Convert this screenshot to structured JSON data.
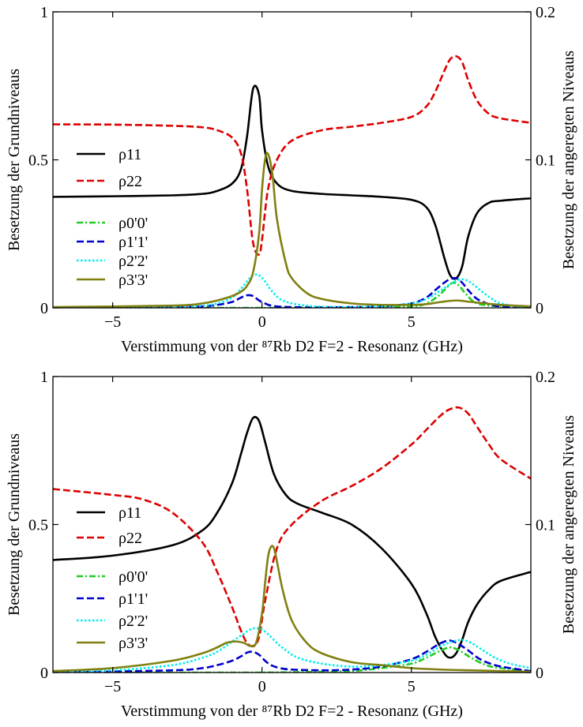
{
  "chart_data": [
    {
      "type": "line",
      "xlabel": "Verstimmung von der ⁸⁷Rb D2 F=2 - Resonanz (GHz)",
      "ylabel_left": "Besetzung der Grundniveaus",
      "ylabel_right": "Besetzung der angeregten Niveaus",
      "xlim": [
        -7,
        9
      ],
      "ylim_left": [
        0,
        1
      ],
      "ylim_right": [
        0,
        0.2
      ],
      "x_ticks": [
        -5,
        0,
        5
      ],
      "x_tick_labels": [
        "−5",
        "0",
        "5"
      ],
      "y_left_ticks": [
        0,
        0.5,
        1
      ],
      "y_left_tick_labels": [
        "0",
        "0.5",
        "1"
      ],
      "y_right_ticks": [
        0,
        0.1,
        0.2
      ],
      "y_right_tick_labels": [
        "0",
        "0.1",
        "0.2"
      ],
      "grid": false,
      "legend_placement": "left",
      "series": [
        {
          "name": "ρ11",
          "axis": "left",
          "color": "#000000",
          "style": "solid",
          "x": [
            -7,
            -5,
            -3,
            -2,
            -1.5,
            -1,
            -0.7,
            -0.5,
            -0.3,
            -0.1,
            0,
            0.2,
            0.5,
            1,
            2,
            3,
            4,
            5,
            5.5,
            5.8,
            6.1,
            6.3,
            6.5,
            6.7,
            6.9,
            7.2,
            7.6,
            8,
            9
          ],
          "y": [
            0.375,
            0.377,
            0.38,
            0.385,
            0.395,
            0.42,
            0.47,
            0.58,
            0.74,
            0.72,
            0.6,
            0.48,
            0.42,
            0.395,
            0.385,
            0.38,
            0.375,
            0.365,
            0.34,
            0.28,
            0.17,
            0.11,
            0.1,
            0.14,
            0.24,
            0.32,
            0.355,
            0.362,
            0.37
          ]
        },
        {
          "name": "ρ22",
          "axis": "left",
          "color": "#dd0000",
          "style": "dashed",
          "x": [
            -7,
            -5,
            -3,
            -2,
            -1.5,
            -1,
            -0.7,
            -0.5,
            -0.3,
            -0.1,
            0,
            0.2,
            0.5,
            1,
            2,
            3,
            4,
            5,
            5.5,
            5.8,
            6.1,
            6.3,
            6.5,
            6.7,
            6.9,
            7.2,
            7.6,
            8,
            9
          ],
          "y": [
            0.62,
            0.619,
            0.615,
            0.61,
            0.6,
            0.575,
            0.52,
            0.4,
            0.22,
            0.18,
            0.23,
            0.4,
            0.5,
            0.565,
            0.6,
            0.612,
            0.625,
            0.645,
            0.68,
            0.73,
            0.8,
            0.84,
            0.85,
            0.83,
            0.77,
            0.7,
            0.655,
            0.64,
            0.625
          ]
        },
        {
          "name": "ρ0'0'",
          "axis": "right",
          "color": "#22cc22",
          "style": "dashdot",
          "x": [
            -7,
            -2,
            0,
            3,
            5,
            5.5,
            5.9,
            6.2,
            6.4,
            6.6,
            6.8,
            7.2,
            8,
            9
          ],
          "y": [
            0,
            0,
            0,
            0,
            0.001,
            0.003,
            0.008,
            0.014,
            0.017,
            0.015,
            0.01,
            0.003,
            0.001,
            0
          ]
        },
        {
          "name": "ρ1'1'",
          "axis": "right",
          "color": "#0000cc",
          "style": "dashed",
          "x": [
            -7,
            -3,
            -2,
            -1.5,
            -1,
            -0.7,
            -0.5,
            -0.3,
            -0.1,
            0.1,
            0.3,
            0.6,
            1,
            2,
            3,
            4,
            5,
            5.5,
            5.8,
            6.1,
            6.3,
            6.5,
            6.7,
            6.9,
            7.2,
            7.6,
            8,
            9
          ],
          "y": [
            0,
            0.0005,
            0.001,
            0.002,
            0.004,
            0.007,
            0.0085,
            0.008,
            0.005,
            0.003,
            0.0015,
            0.0008,
            0.0005,
            0.0003,
            0.0005,
            0.001,
            0.003,
            0.007,
            0.012,
            0.017,
            0.0195,
            0.02,
            0.017,
            0.012,
            0.006,
            0.0025,
            0.001,
            0
          ]
        },
        {
          "name": "ρ2'2'",
          "axis": "right",
          "color": "#00eeee",
          "style": "dotted",
          "x": [
            -7,
            -3,
            -2,
            -1.5,
            -1,
            -0.7,
            -0.5,
            -0.3,
            -0.1,
            0.1,
            0.3,
            0.6,
            1,
            1.5,
            2,
            3,
            4,
            5,
            5.5,
            6,
            6.3,
            6.6,
            6.8,
            7,
            7.3,
            7.7,
            8,
            8.5,
            9
          ],
          "y": [
            0,
            0.0005,
            0.0015,
            0.003,
            0.007,
            0.013,
            0.018,
            0.022,
            0.022,
            0.018,
            0.012,
            0.006,
            0.003,
            0.0015,
            0.0008,
            0.0005,
            0.001,
            0.003,
            0.006,
            0.012,
            0.016,
            0.019,
            0.019,
            0.017,
            0.012,
            0.006,
            0.003,
            0.001,
            0
          ]
        },
        {
          "name": "ρ3'3'",
          "axis": "right",
          "color": "#808010",
          "style": "solid",
          "x": [
            -7,
            -3,
            -2,
            -1.5,
            -1,
            -0.7,
            -0.5,
            -0.3,
            -0.1,
            0,
            0.1,
            0.2,
            0.35,
            0.5,
            0.8,
            1,
            1.5,
            2,
            3,
            4,
            5,
            5.5,
            6,
            6.5,
            7,
            8,
            9
          ],
          "y": [
            0.0005,
            0.0015,
            0.003,
            0.005,
            0.008,
            0.011,
            0.015,
            0.024,
            0.05,
            0.08,
            0.1,
            0.104,
            0.09,
            0.06,
            0.03,
            0.02,
            0.01,
            0.006,
            0.003,
            0.002,
            0.002,
            0.0025,
            0.004,
            0.005,
            0.004,
            0.002,
            0.001
          ]
        }
      ]
    },
    {
      "type": "line",
      "xlabel": "Verstimmung von der ⁸⁷Rb D2 F=2 - Resonanz (GHz)",
      "ylabel_left": "Besetzung der Grundniveaus",
      "ylabel_right": "Besetzung der angeregten Niveaus",
      "xlim": [
        -7,
        9
      ],
      "ylim_left": [
        0,
        1
      ],
      "ylim_right": [
        0,
        0.2
      ],
      "x_ticks": [
        -5,
        0,
        5
      ],
      "x_tick_labels": [
        "−5",
        "0",
        "5"
      ],
      "y_left_ticks": [
        0,
        0.5,
        1
      ],
      "y_left_tick_labels": [
        "0",
        "0.5",
        "1"
      ],
      "y_right_ticks": [
        0,
        0.1,
        0.2
      ],
      "y_right_tick_labels": [
        "0",
        "0.1",
        "0.2"
      ],
      "grid": false,
      "legend_placement": "left",
      "series": [
        {
          "name": "ρ11",
          "axis": "left",
          "color": "#000000",
          "style": "solid",
          "x": [
            -7,
            -5,
            -3,
            -2,
            -1.5,
            -1,
            -0.7,
            -0.5,
            -0.3,
            -0.1,
            0.1,
            0.4,
            0.8,
            1.2,
            2,
            3,
            4,
            5,
            5.5,
            5.8,
            6.1,
            6.3,
            6.5,
            6.7,
            6.9,
            7.2,
            7.6,
            8,
            9
          ],
          "y": [
            0.38,
            0.395,
            0.43,
            0.48,
            0.54,
            0.64,
            0.74,
            0.81,
            0.86,
            0.85,
            0.78,
            0.67,
            0.6,
            0.57,
            0.54,
            0.5,
            0.42,
            0.3,
            0.2,
            0.12,
            0.065,
            0.05,
            0.065,
            0.11,
            0.17,
            0.23,
            0.28,
            0.31,
            0.34
          ]
        },
        {
          "name": "ρ22",
          "axis": "left",
          "color": "#dd0000",
          "style": "dashed",
          "x": [
            -7,
            -5,
            -4,
            -3,
            -2,
            -1.5,
            -1,
            -0.7,
            -0.5,
            -0.3,
            -0.1,
            0.1,
            0.5,
            1,
            2,
            3,
            4,
            5,
            5.5,
            6,
            6.3,
            6.6,
            6.9,
            7.2,
            7.6,
            8,
            9
          ],
          "y": [
            0.62,
            0.6,
            0.585,
            0.54,
            0.44,
            0.34,
            0.22,
            0.14,
            0.1,
            0.09,
            0.12,
            0.24,
            0.42,
            0.5,
            0.58,
            0.63,
            0.69,
            0.77,
            0.82,
            0.87,
            0.89,
            0.895,
            0.875,
            0.83,
            0.77,
            0.72,
            0.655
          ]
        },
        {
          "name": "ρ0'0'",
          "axis": "right",
          "color": "#22cc22",
          "style": "dashdot",
          "x": [
            -7,
            -2,
            0,
            2,
            3,
            4,
            5,
            5.5,
            6,
            6.3,
            6.6,
            7,
            7.5,
            8,
            9
          ],
          "y": [
            0,
            0,
            0,
            0.0005,
            0.001,
            0.003,
            0.006,
            0.01,
            0.015,
            0.017,
            0.015,
            0.01,
            0.005,
            0.003,
            0.001
          ]
        },
        {
          "name": "ρ1'1'",
          "axis": "right",
          "color": "#0000cc",
          "style": "dashed",
          "x": [
            -7,
            -3,
            -2,
            -1.5,
            -1,
            -0.7,
            -0.5,
            -0.3,
            -0.1,
            0.1,
            0.3,
            0.6,
            1,
            2,
            3,
            4,
            5,
            5.5,
            5.9,
            6.2,
            6.4,
            6.6,
            6.9,
            7.3,
            7.8,
            8.3,
            9
          ],
          "y": [
            0,
            0.0015,
            0.003,
            0.005,
            0.008,
            0.011,
            0.0135,
            0.014,
            0.012,
            0.008,
            0.005,
            0.003,
            0.002,
            0.0015,
            0.002,
            0.004,
            0.009,
            0.014,
            0.019,
            0.0215,
            0.021,
            0.019,
            0.015,
            0.009,
            0.005,
            0.003,
            0.001
          ]
        },
        {
          "name": "ρ2'2'",
          "axis": "right",
          "color": "#00eeee",
          "style": "dotted",
          "x": [
            -7,
            -5,
            -3,
            -2,
            -1.5,
            -1,
            -0.7,
            -0.4,
            -0.2,
            0,
            0.2,
            0.5,
            0.8,
            1.2,
            2,
            3,
            4,
            5,
            5.5,
            6,
            6.4,
            6.7,
            7,
            7.4,
            7.8,
            8.3,
            9
          ],
          "y": [
            0.0005,
            0.0015,
            0.005,
            0.01,
            0.014,
            0.021,
            0.025,
            0.029,
            0.03,
            0.029,
            0.026,
            0.02,
            0.015,
            0.01,
            0.006,
            0.004,
            0.005,
            0.008,
            0.012,
            0.018,
            0.021,
            0.022,
            0.02,
            0.015,
            0.01,
            0.006,
            0.003
          ]
        },
        {
          "name": "ρ3'3'",
          "axis": "right",
          "color": "#808010",
          "style": "solid",
          "x": [
            -7,
            -5,
            -3,
            -2,
            -1.5,
            -1.2,
            -0.9,
            -0.6,
            -0.4,
            -0.2,
            0,
            0.1,
            0.2,
            0.3,
            0.4,
            0.5,
            0.7,
            1,
            1.5,
            2,
            3,
            4,
            5,
            6,
            7,
            8,
            9
          ],
          "y": [
            0.001,
            0.003,
            0.008,
            0.013,
            0.017,
            0.02,
            0.021,
            0.02,
            0.018,
            0.02,
            0.04,
            0.06,
            0.078,
            0.085,
            0.084,
            0.075,
            0.055,
            0.035,
            0.02,
            0.013,
            0.007,
            0.005,
            0.003,
            0.002,
            0.0015,
            0.001,
            0.0005
          ]
        }
      ]
    }
  ]
}
